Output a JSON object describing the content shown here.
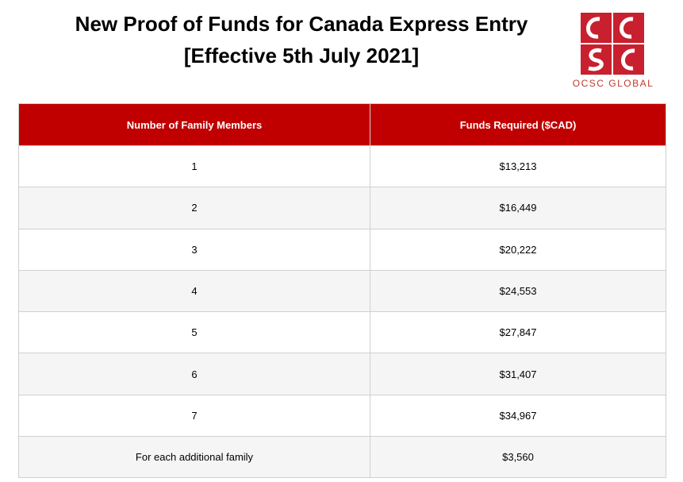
{
  "header": {
    "title_lines": [
      "New Proof of Funds for Canada Express Entry",
      "[Effective 5th July 2021]"
    ],
    "logo_text": "OCSC GLOBAL"
  },
  "table": {
    "columns": [
      "Number of Family Members",
      "Funds Required ($CAD)"
    ],
    "rows": [
      [
        "1",
        "$13,213"
      ],
      [
        "2",
        "$16,449"
      ],
      [
        "3",
        "$20,222"
      ],
      [
        "4",
        "$24,553"
      ],
      [
        "5",
        "$27,847"
      ],
      [
        "6",
        "$31,407"
      ],
      [
        "7",
        "$34,967"
      ],
      [
        "For each additional family",
        "$3,560"
      ]
    ]
  }
}
